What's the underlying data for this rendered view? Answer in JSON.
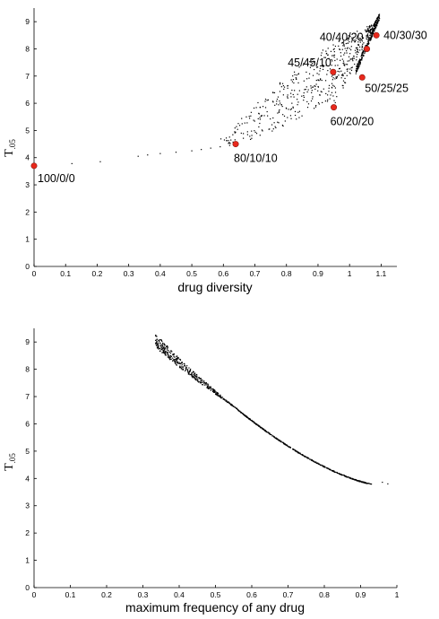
{
  "chart_data": [
    {
      "type": "scatter",
      "title": "",
      "xlabel": "drug diversity",
      "ylabel_main": "T",
      "ylabel_sub": ".05",
      "xlim": [
        0,
        1.15
      ],
      "ylim": [
        0,
        9.5
      ],
      "xticks": [
        "0",
        "0.1",
        "0.2",
        "0.3",
        "0.4",
        "0.5",
        "0.6",
        "0.7",
        "0.8",
        "0.9",
        "1",
        "1.1"
      ],
      "yticks": [
        "0",
        "1",
        "2",
        "3",
        "4",
        "5",
        "6",
        "7",
        "8",
        "9"
      ],
      "grid": false,
      "highlighted": [
        {
          "label": "100/0/0",
          "x": 0.0,
          "y": 3.7
        },
        {
          "label": "80/10/10",
          "x": 0.639,
          "y": 4.5
        },
        {
          "label": "60/20/20",
          "x": 0.95,
          "y": 5.85
        },
        {
          "label": "45/45/10",
          "x": 0.948,
          "y": 7.15
        },
        {
          "label": "50/25/25",
          "x": 1.04,
          "y": 6.95
        },
        {
          "label": "40/40/20",
          "x": 1.055,
          "y": 8.0
        },
        {
          "label": "40/30/30",
          "x": 1.085,
          "y": 8.5
        }
      ]
    },
    {
      "type": "scatter",
      "title": "",
      "xlabel": "maximum frequency of any drug",
      "ylabel_main": "T",
      "ylabel_sub": ".05",
      "xlim": [
        0,
        1
      ],
      "ylim": [
        0,
        9.5
      ],
      "xticks": [
        "0",
        "0.1",
        "0.2",
        "0.3",
        "0.4",
        "0.5",
        "0.6",
        "0.7",
        "0.8",
        "0.9",
        "1"
      ],
      "yticks": [
        "0",
        "1",
        "2",
        "3",
        "4",
        "5",
        "6",
        "7",
        "8",
        "9"
      ],
      "grid": false
    }
  ]
}
